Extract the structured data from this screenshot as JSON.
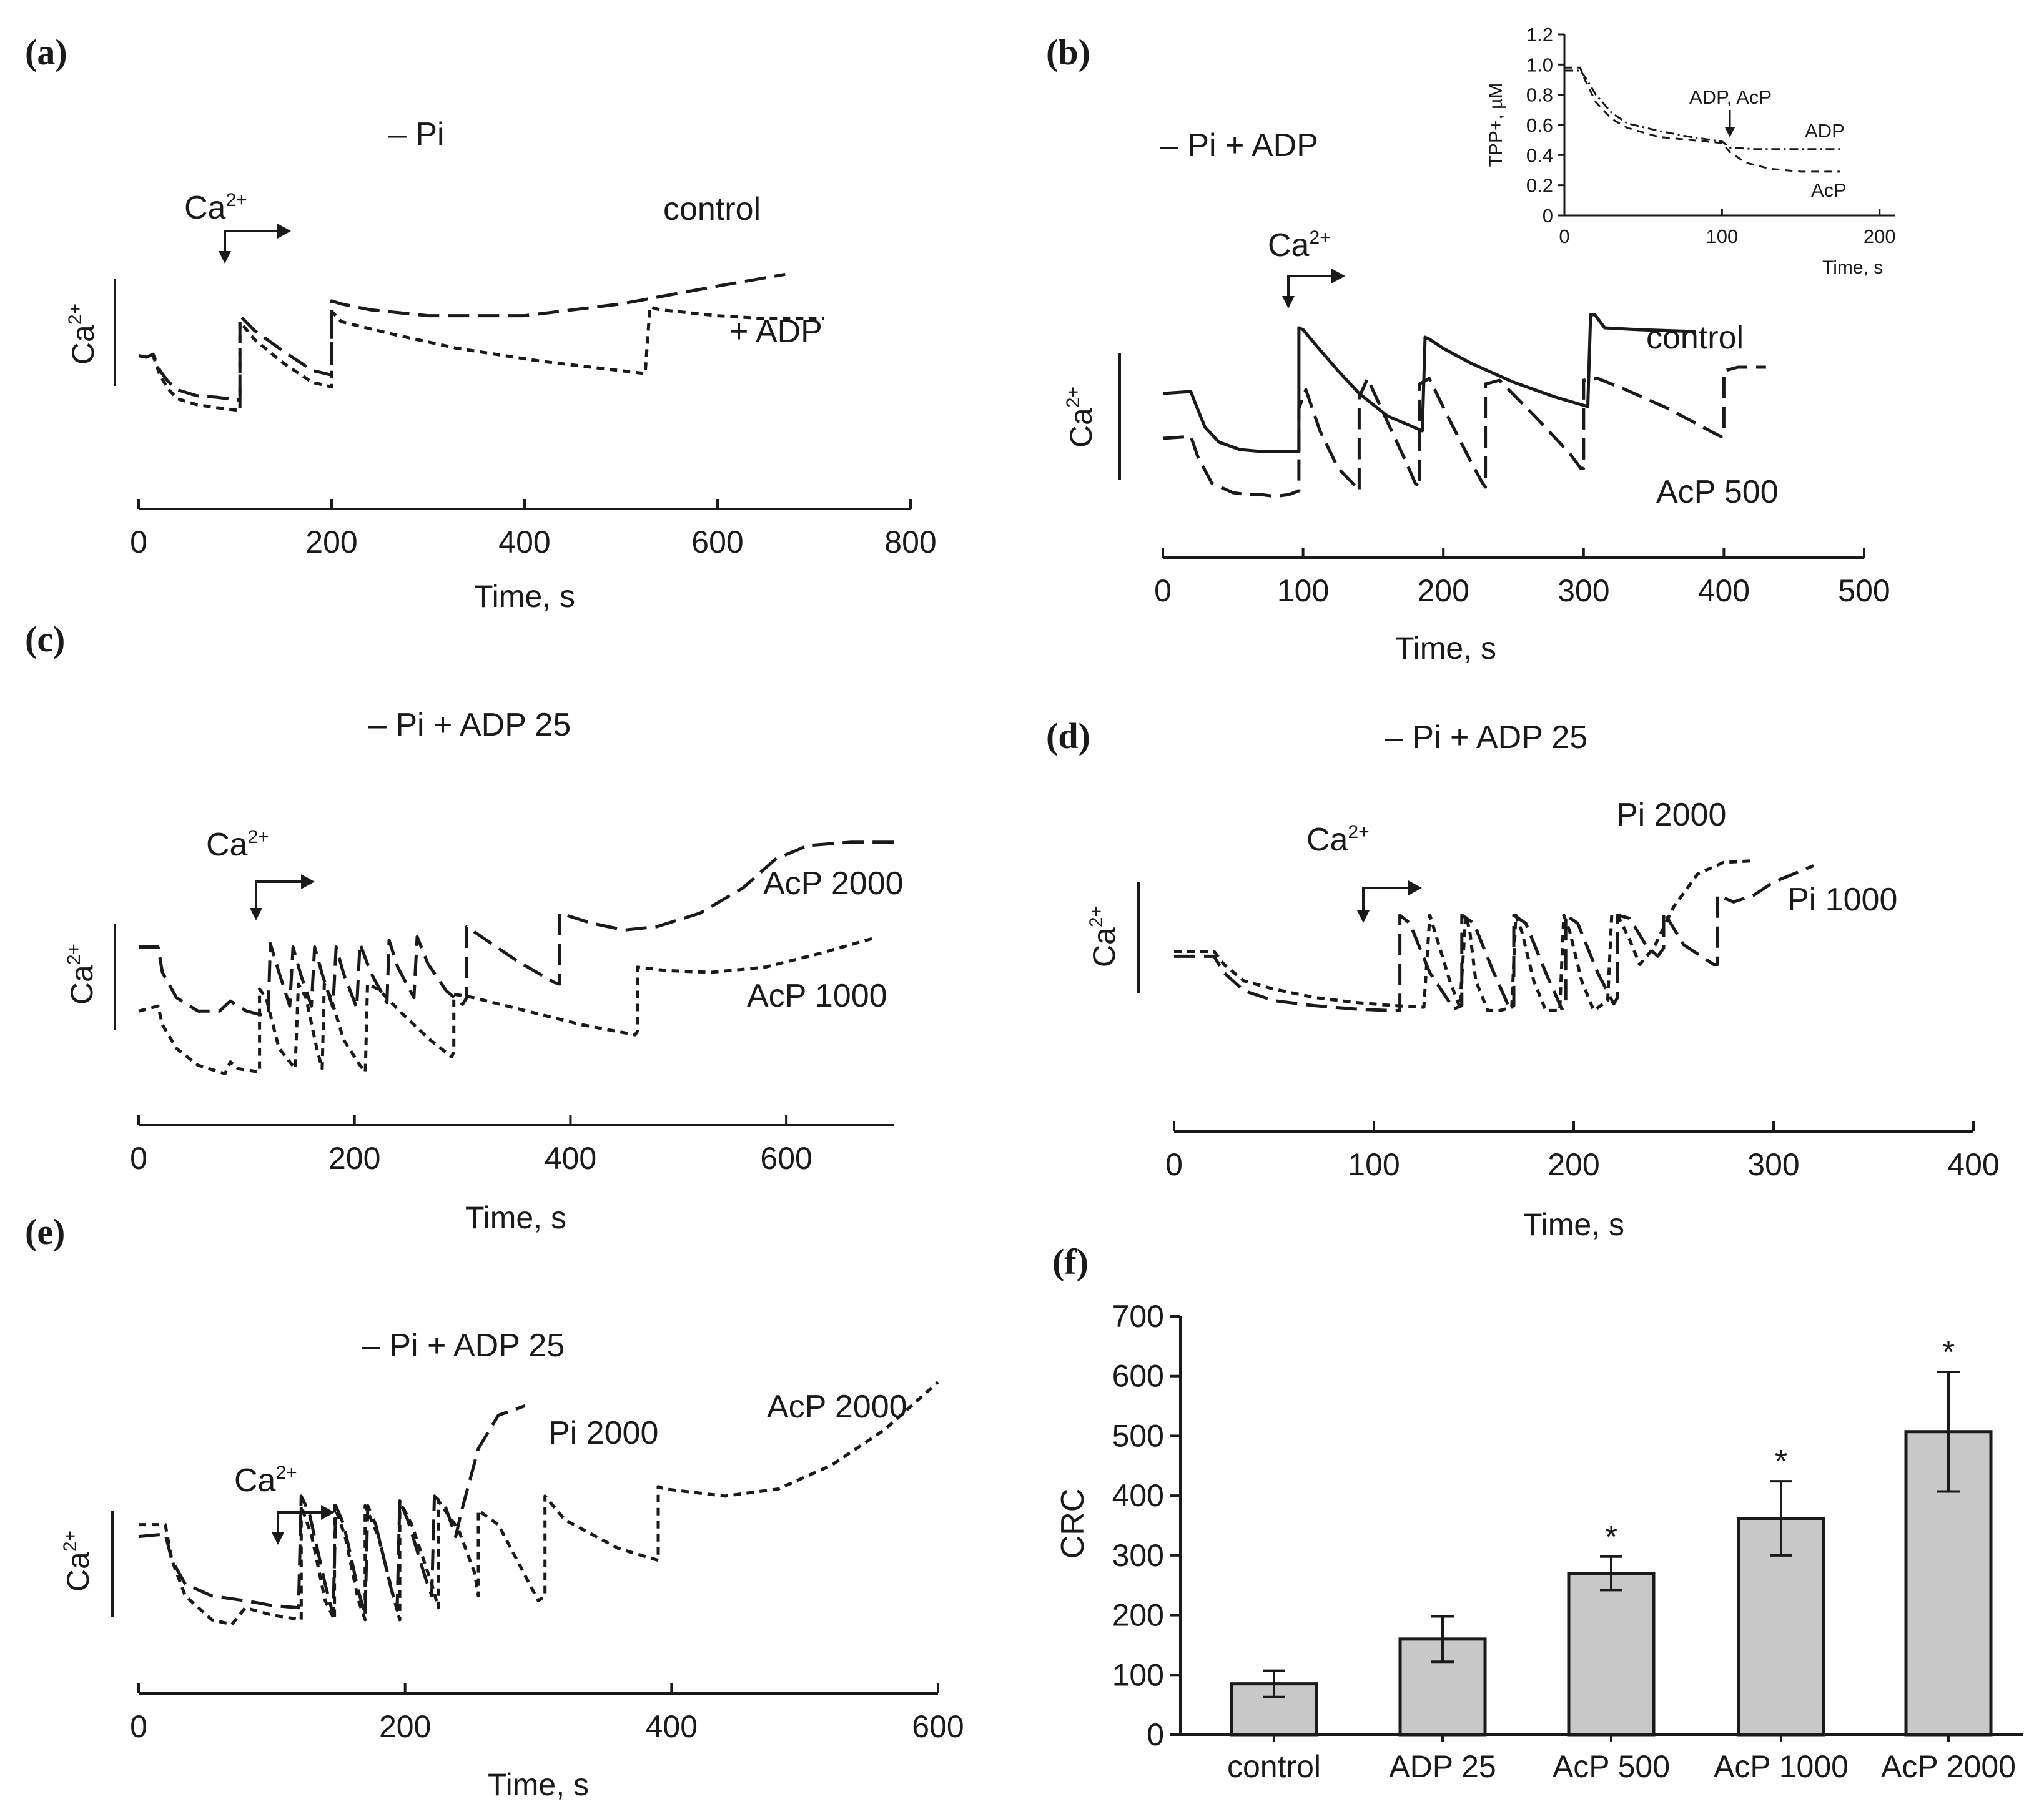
{
  "chart_data": [
    {
      "panel": "(a)",
      "type": "line",
      "title": "– Pi",
      "xlabel": "Time, s",
      "ylabel": "Ca2+",
      "xlim": [
        0,
        800
      ],
      "xticks": [
        "0",
        "200",
        "400",
        "600",
        "800"
      ],
      "annotation": "Ca2+",
      "series": [
        {
          "name": "control",
          "style": "long-dash",
          "x": [
            0,
            8,
            15,
            22,
            30,
            40,
            60,
            80,
            105,
            105,
            120,
            150,
            180,
            200,
            200,
            210,
            240,
            300,
            400,
            500,
            600,
            670
          ],
          "y": [
            0.55,
            0.54,
            0.56,
            0.45,
            0.38,
            0.32,
            0.28,
            0.27,
            0.25,
            0.82,
            0.72,
            0.58,
            0.45,
            0.42,
            0.92,
            0.9,
            0.86,
            0.82,
            0.82,
            0.9,
            1.02,
            1.1
          ]
        },
        {
          "name": "+ ADP",
          "style": "short-dash",
          "x": [
            0,
            8,
            15,
            22,
            30,
            40,
            60,
            80,
            105,
            105,
            120,
            150,
            180,
            200,
            200,
            210,
            260,
            330,
            420,
            525,
            530,
            540,
            600,
            650,
            710
          ],
          "y": [
            0.55,
            0.54,
            0.55,
            0.42,
            0.33,
            0.26,
            0.22,
            0.2,
            0.18,
            0.78,
            0.66,
            0.5,
            0.37,
            0.34,
            0.85,
            0.78,
            0.7,
            0.6,
            0.51,
            0.43,
            0.88,
            0.86,
            0.82,
            0.8,
            0.8
          ]
        }
      ]
    },
    {
      "panel": "(b)",
      "type": "line",
      "title": "– Pi + ADP",
      "xlabel": "Time, s",
      "ylabel": "Ca2+",
      "xlim": [
        0,
        500
      ],
      "xticks": [
        "0",
        "100",
        "200",
        "300",
        "400",
        "500"
      ],
      "annotation": "Ca2+",
      "series": [
        {
          "name": "control",
          "style": "solid",
          "x": [
            0,
            20,
            23,
            30,
            40,
            55,
            70,
            85,
            97,
            97,
            100,
            110,
            125,
            140,
            160,
            185,
            187,
            190,
            200,
            220,
            250,
            280,
            303,
            305,
            308,
            315,
            340,
            380
          ],
          "y": [
            0.7,
            0.71,
            0.65,
            0.52,
            0.44,
            0.4,
            0.39,
            0.39,
            0.39,
            1.05,
            1.04,
            0.95,
            0.82,
            0.7,
            0.58,
            0.5,
            1.0,
            0.99,
            0.94,
            0.86,
            0.76,
            0.68,
            0.63,
            1.12,
            1.12,
            1.05,
            1.04,
            1.03
          ]
        },
        {
          "name": "AcP 500",
          "style": "long-dash",
          "x": [
            0,
            20,
            25,
            35,
            50,
            60,
            70,
            80,
            90,
            97,
            97,
            102,
            112,
            125,
            138,
            140,
            140,
            146,
            160,
            173,
            180,
            183,
            183,
            190,
            205,
            220,
            228,
            230,
            230,
            240,
            265,
            290,
            298,
            300,
            300,
            310,
            330,
            360,
            395,
            398,
            400,
            400,
            410,
            430
          ],
          "y": [
            0.46,
            0.47,
            0.36,
            0.22,
            0.17,
            0.16,
            0.16,
            0.15,
            0.16,
            0.18,
            0.62,
            0.72,
            0.5,
            0.3,
            0.2,
            0.18,
            0.68,
            0.78,
            0.55,
            0.34,
            0.22,
            0.2,
            0.75,
            0.78,
            0.55,
            0.33,
            0.22,
            0.2,
            0.75,
            0.77,
            0.58,
            0.38,
            0.3,
            0.3,
            0.77,
            0.78,
            0.72,
            0.62,
            0.48,
            0.47,
            0.48,
            0.82,
            0.84,
            0.84
          ]
        }
      ],
      "inset": {
        "type": "line",
        "ylabel": "TPP+, µM",
        "xlabel": "Time, s",
        "xlim": [
          0,
          200
        ],
        "ylim": [
          0,
          1.2
        ],
        "xticks": [
          "0",
          "100",
          "200"
        ],
        "yticks": [
          "0",
          "0.2",
          "0.4",
          "0.6",
          "0.8",
          "1.0",
          "1.2"
        ],
        "annotation": "ADP, AcP",
        "series": [
          {
            "name": "ADP",
            "style": "dash-dot",
            "x": [
              0,
              10,
              13,
              20,
              30,
              40,
              60,
              80,
              100,
              105,
              120,
              140,
              175
            ],
            "y": [
              0.96,
              0.96,
              0.92,
              0.8,
              0.68,
              0.61,
              0.56,
              0.52,
              0.49,
              0.45,
              0.44,
              0.44,
              0.44
            ]
          },
          {
            "name": "AcP",
            "style": "short-dash",
            "x": [
              0,
              10,
              13,
              20,
              30,
              40,
              60,
              80,
              100,
              105,
              115,
              130,
              150,
              175
            ],
            "y": [
              0.98,
              0.98,
              0.9,
              0.75,
              0.64,
              0.58,
              0.52,
              0.5,
              0.48,
              0.42,
              0.35,
              0.31,
              0.29,
              0.29
            ]
          }
        ]
      }
    },
    {
      "panel": "(c)",
      "type": "line",
      "title": "– Pi + ADP 25",
      "xlabel": "Time, s",
      "ylabel": "Ca2+",
      "xlim": [
        0,
        700
      ],
      "xticks": [
        "0",
        "200",
        "400",
        "600"
      ],
      "annotation": "Ca2+",
      "series": [
        {
          "name": "AcP 2000",
          "style": "long-dash",
          "x": [
            0,
            18,
            22,
            35,
            55,
            75,
            85,
            92,
            100,
            112,
            120,
            122,
            130,
            140,
            143,
            150,
            160,
            163,
            170,
            180,
            183,
            190,
            202,
            205,
            215,
            230,
            232,
            240,
            255,
            258,
            268,
            285,
            300,
            304,
            304,
            320,
            350,
            385,
            390,
            390,
            420,
            450,
            480,
            520,
            560,
            590,
            620,
            660,
            700
          ],
          "y": [
            0.6,
            0.6,
            0.45,
            0.3,
            0.22,
            0.22,
            0.28,
            0.25,
            0.22,
            0.2,
            0.2,
            0.62,
            0.45,
            0.25,
            0.6,
            0.44,
            0.25,
            0.6,
            0.44,
            0.24,
            0.6,
            0.44,
            0.24,
            0.62,
            0.45,
            0.27,
            0.64,
            0.48,
            0.3,
            0.66,
            0.5,
            0.34,
            0.26,
            0.3,
            0.72,
            0.65,
            0.52,
            0.39,
            0.38,
            0.8,
            0.74,
            0.7,
            0.72,
            0.8,
            0.95,
            1.12,
            1.2,
            1.22,
            1.22
          ]
        },
        {
          "name": "AcP 1000",
          "style": "short-dash",
          "x": [
            0,
            18,
            22,
            35,
            55,
            80,
            85,
            92,
            112,
            112,
            118,
            130,
            145,
            148,
            155,
            165,
            170,
            172,
            178,
            190,
            205,
            210,
            212,
            222,
            245,
            270,
            290,
            292,
            292,
            310,
            360,
            410,
            460,
            462,
            462,
            490,
            530,
            580,
            630,
            680
          ],
          "y": [
            0.22,
            0.25,
            0.14,
            0.0,
            -0.1,
            -0.15,
            -0.08,
            -0.12,
            -0.14,
            0.35,
            0.3,
            0.0,
            -0.12,
            0.38,
            0.3,
            0.0,
            -0.12,
            0.38,
            0.3,
            0.05,
            -0.1,
            -0.14,
            0.38,
            0.35,
            0.2,
            0.05,
            -0.05,
            -0.02,
            0.32,
            0.3,
            0.22,
            0.14,
            0.08,
            0.1,
            0.48,
            0.46,
            0.45,
            0.48,
            0.56,
            0.65
          ]
        }
      ]
    },
    {
      "panel": "(d)",
      "type": "line",
      "title": "– Pi + ADP 25",
      "xlabel": "Time, s",
      "ylabel": "Ca2+",
      "xlim": [
        0,
        400
      ],
      "xticks": [
        "0",
        "100",
        "200",
        "300",
        "400"
      ],
      "annotation": "Ca2+",
      "series": [
        {
          "name": "Pi 2000",
          "style": "short-dash",
          "x": [
            0,
            20,
            25,
            35,
            50,
            70,
            90,
            110,
            125,
            128,
            131,
            138,
            143,
            146,
            148,
            151,
            157,
            163,
            169,
            171,
            174,
            180,
            186,
            193,
            195,
            198,
            204,
            210,
            217,
            219,
            222,
            228,
            233,
            240,
            250,
            262,
            275,
            290
          ],
          "y": [
            0.38,
            0.38,
            0.3,
            0.2,
            0.15,
            0.1,
            0.07,
            0.05,
            0.04,
            0.6,
            0.48,
            0.2,
            0.04,
            0.6,
            0.5,
            0.2,
            0.02,
            0.02,
            0.04,
            0.6,
            0.5,
            0.2,
            0.02,
            0.02,
            0.6,
            0.5,
            0.2,
            0.02,
            0.08,
            0.6,
            0.6,
            0.45,
            0.3,
            0.4,
            0.65,
            0.85,
            0.92,
            0.93
          ]
        },
        {
          "name": "Pi 1000",
          "style": "long-dash",
          "x": [
            0,
            20,
            25,
            35,
            50,
            70,
            90,
            108,
            113,
            113,
            118,
            128,
            140,
            144,
            144,
            150,
            160,
            168,
            170,
            170,
            176,
            186,
            194,
            196,
            196,
            202,
            212,
            220,
            222,
            222,
            228,
            236,
            242,
            245,
            245,
            255,
            270,
            272,
            272,
            280,
            290,
            300,
            320
          ],
          "y": [
            0.35,
            0.35,
            0.25,
            0.14,
            0.08,
            0.05,
            0.03,
            0.02,
            0.02,
            0.6,
            0.55,
            0.25,
            0.03,
            0.05,
            0.6,
            0.55,
            0.25,
            0.03,
            0.05,
            0.6,
            0.55,
            0.25,
            0.03,
            0.05,
            0.6,
            0.55,
            0.25,
            0.06,
            0.1,
            0.6,
            0.58,
            0.42,
            0.35,
            0.4,
            0.62,
            0.42,
            0.3,
            0.3,
            0.72,
            0.68,
            0.72,
            0.8,
            0.9
          ]
        }
      ]
    },
    {
      "panel": "(e)",
      "type": "line",
      "title": "– Pi + ADP 25",
      "xlabel": "Time, s",
      "ylabel": "Ca2+",
      "xlim": [
        0,
        600
      ],
      "xticks": [
        "0",
        "200",
        "400",
        "600"
      ],
      "annotation": "Ca2+",
      "series": [
        {
          "name": "Pi 2000",
          "style": "long-dash",
          "x": [
            0,
            20,
            25,
            35,
            55,
            80,
            100,
            120,
            122,
            128,
            140,
            146,
            148,
            154,
            165,
            170,
            172,
            178,
            190,
            194,
            196,
            202,
            215,
            220,
            222,
            230,
            238,
            242,
            255,
            270,
            290
          ],
          "y": [
            0.45,
            0.46,
            0.35,
            0.25,
            0.2,
            0.18,
            0.16,
            0.15,
            0.62,
            0.55,
            0.25,
            0.12,
            0.58,
            0.5,
            0.22,
            0.12,
            0.58,
            0.5,
            0.22,
            0.14,
            0.6,
            0.52,
            0.28,
            0.2,
            0.62,
            0.58,
            0.45,
            0.55,
            0.82,
            0.96,
            1.0
          ]
        },
        {
          "name": "AcP 2000",
          "style": "short-dash",
          "x": [
            0,
            20,
            25,
            35,
            55,
            70,
            80,
            100,
            122,
            122,
            130,
            140,
            147,
            147,
            155,
            165,
            170,
            170,
            180,
            192,
            196,
            196,
            205,
            220,
            225,
            225,
            240,
            252,
            255,
            255,
            270,
            300,
            305,
            305,
            320,
            360,
            390,
            390,
            395,
            440,
            480,
            520,
            560,
            600
          ],
          "y": [
            0.5,
            0.5,
            0.35,
            0.2,
            0.1,
            0.08,
            0.15,
            0.12,
            0.1,
            0.58,
            0.45,
            0.18,
            0.1,
            0.58,
            0.45,
            0.18,
            0.1,
            0.58,
            0.45,
            0.18,
            0.1,
            0.6,
            0.5,
            0.25,
            0.15,
            0.6,
            0.48,
            0.3,
            0.2,
            0.56,
            0.5,
            0.18,
            0.2,
            0.62,
            0.52,
            0.4,
            0.35,
            0.66,
            0.65,
            0.62,
            0.65,
            0.75,
            0.9,
            1.1
          ]
        }
      ]
    },
    {
      "panel": "(f)",
      "type": "bar",
      "ylabel": "CRC",
      "ylim": [
        0,
        700
      ],
      "yticks": [
        "0",
        "100",
        "200",
        "300",
        "400",
        "500",
        "600",
        "700"
      ],
      "categories": [
        "control",
        "ADP 25",
        "AcP 500",
        "AcP 1000",
        "AcP 2000"
      ],
      "values": [
        85,
        160,
        270,
        362,
        507
      ],
      "errors": [
        22,
        38,
        28,
        62,
        100
      ],
      "significance": [
        "",
        "",
        "*",
        "*",
        "*"
      ]
    }
  ]
}
